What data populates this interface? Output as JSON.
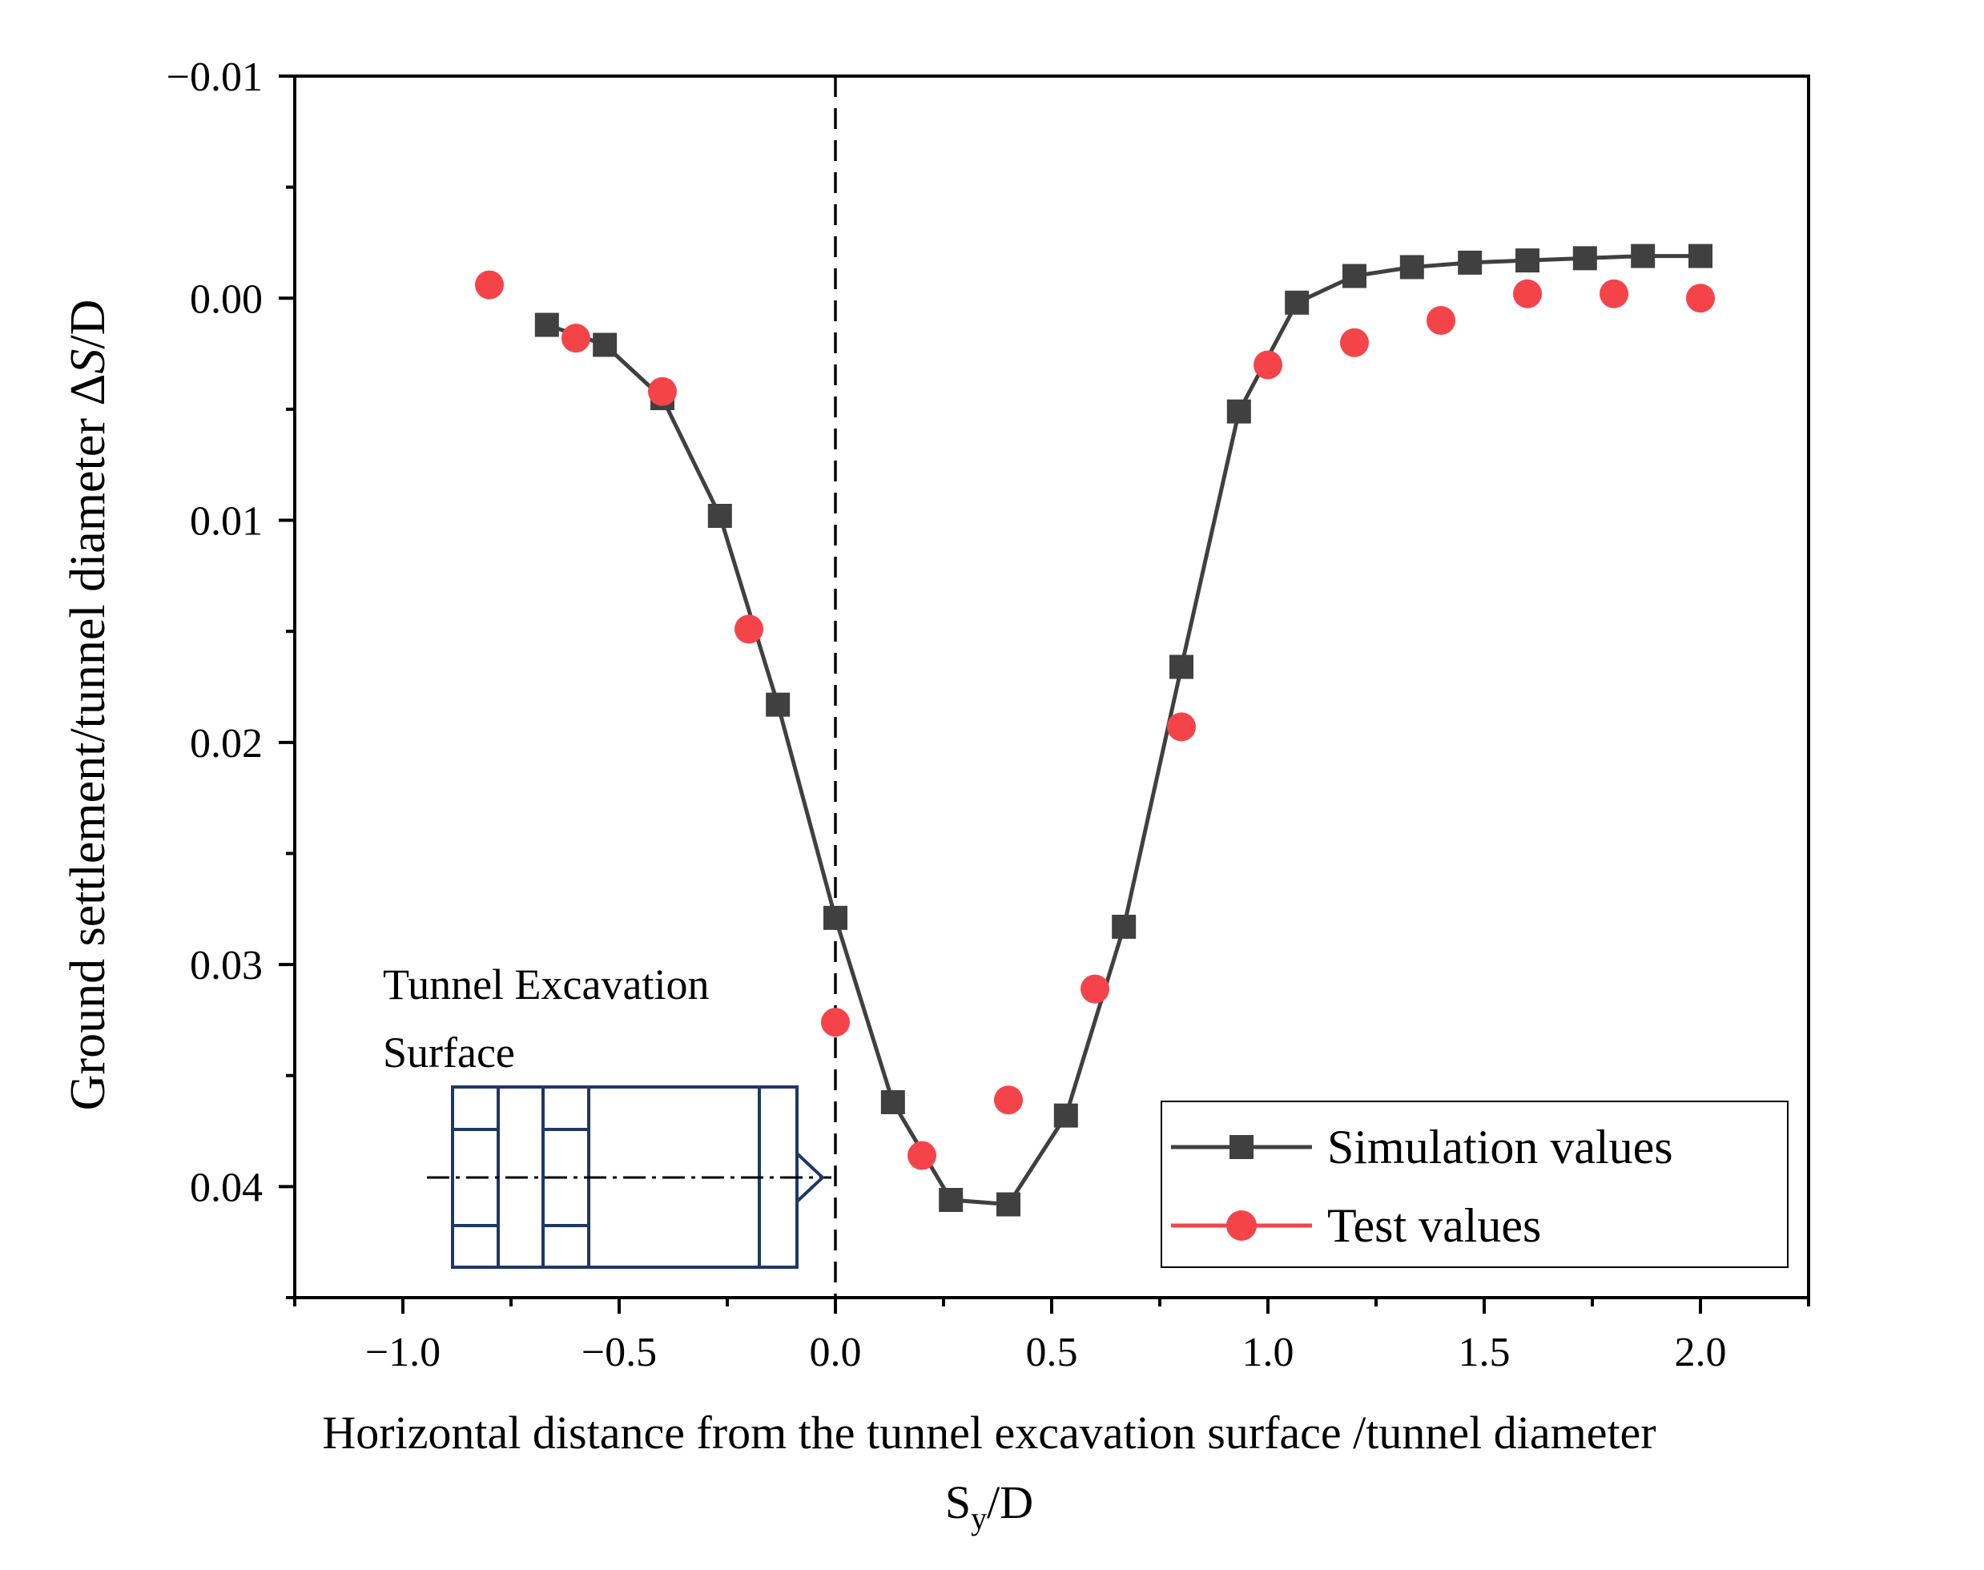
{
  "chart_data": {
    "type": "line",
    "xlabel": "Horizontal distance from the tunnel excavation surface /tunnel diameter",
    "xlabel_symbol": {
      "base": "S",
      "sub": "y",
      "rest": "/D"
    },
    "ylabel": "Ground settlement/tunnel diameter ΔS/D",
    "ylabel_parts": {
      "text": "Ground settlement/tunnel diameter Δ",
      "italic": "S",
      "rest": "/D"
    },
    "xlim": [
      -1.25,
      2.25
    ],
    "ylim": [
      -0.01,
      0.045
    ],
    "y_inverted": true,
    "xticks": [
      -1.0,
      -0.5,
      0.0,
      0.5,
      1.0,
      1.5,
      2.0
    ],
    "xtick_labels": [
      "−1.0",
      "−0.5",
      "0.0",
      "0.5",
      "1.0",
      "1.5",
      "2.0"
    ],
    "xminor": [
      -1.25,
      -0.75,
      -0.25,
      0.25,
      0.75,
      1.25,
      1.75,
      2.25
    ],
    "yticks": [
      -0.01,
      0.0,
      0.01,
      0.02,
      0.03,
      0.04
    ],
    "ytick_labels": [
      "−0.01",
      "0.00",
      "0.01",
      "0.02",
      "0.03",
      "0.04"
    ],
    "yminor": [
      -0.005,
      0.005,
      0.015,
      0.025,
      0.035,
      0.045
    ],
    "reference_line": {
      "x": 0.0,
      "style": "dashed"
    },
    "series": [
      {
        "name": "Simulation values",
        "color": "#404040",
        "marker": "square",
        "line": true,
        "x": [
          -0.667,
          -0.533,
          -0.4,
          -0.267,
          -0.133,
          0.0,
          0.133,
          0.267,
          0.4,
          0.533,
          0.667,
          0.8,
          0.933,
          1.067,
          1.2,
          1.333,
          1.467,
          1.6,
          1.733,
          1.867,
          2.0
        ],
        "y": [
          0.0012,
          0.0021,
          0.0045,
          0.0098,
          0.0183,
          0.0279,
          0.0362,
          0.0406,
          0.0408,
          0.0368,
          0.0283,
          0.0166,
          0.0051,
          0.0002,
          -0.001,
          -0.0014,
          -0.0016,
          -0.0017,
          -0.0018,
          -0.0019,
          -0.0019
        ]
      },
      {
        "name": "Test values",
        "color": "#f4444a",
        "marker": "circle",
        "line": false,
        "x": [
          -0.8,
          -0.6,
          -0.4,
          -0.2,
          0.0,
          0.2,
          0.4,
          0.6,
          0.8,
          1.0,
          1.2,
          1.4,
          1.6,
          1.8,
          2.0
        ],
        "y": [
          -0.0006,
          0.0018,
          0.0042,
          0.0149,
          0.0326,
          0.0386,
          0.0361,
          0.0311,
          0.0193,
          0.003,
          0.002,
          0.001,
          -0.0002,
          -0.0002,
          0.0
        ]
      }
    ],
    "legend": {
      "position": "bottom-right",
      "entries": [
        "Simulation values",
        "Test values"
      ]
    },
    "annotation": {
      "lines": [
        "Tunnel Excavation",
        "Surface"
      ],
      "diagram": "tunnel-excavation-surface-schematic",
      "diagram_color": "#1f3864"
    }
  }
}
